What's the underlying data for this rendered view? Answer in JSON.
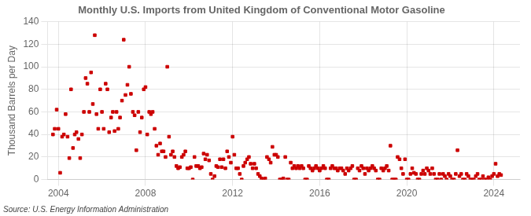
{
  "chart_data": {
    "type": "scatter",
    "title": "Monthly U.S. Imports from United Kingdom of Conventional Motor Gasoline",
    "ylabel": "Thousand Barrels per Day",
    "annotations": [
      "Source: U.S. Energy Information Administration"
    ],
    "color": "#cc0000",
    "marker": "square",
    "grid": true,
    "xlim": [
      2003.5,
      2025.2
    ],
    "ylim": [
      0,
      140
    ],
    "xticks": [
      2004,
      2008,
      2012,
      2016,
      2020,
      2024
    ],
    "yticks": [
      0,
      20,
      40,
      60,
      80,
      100,
      120,
      140
    ],
    "x": [
      2003.75,
      2003.83,
      2003.92,
      2004.0,
      2004.08,
      2004.17,
      2004.25,
      2004.33,
      2004.42,
      2004.5,
      2004.58,
      2004.67,
      2004.75,
      2004.83,
      2004.92,
      2005.0,
      2005.08,
      2005.17,
      2005.25,
      2005.33,
      2005.42,
      2005.5,
      2005.58,
      2005.67,
      2005.75,
      2005.83,
      2005.92,
      2006.0,
      2006.08,
      2006.17,
      2006.25,
      2006.33,
      2006.42,
      2006.5,
      2006.58,
      2006.67,
      2006.75,
      2006.83,
      2006.92,
      2007.0,
      2007.08,
      2007.17,
      2007.25,
      2007.33,
      2007.42,
      2007.5,
      2007.58,
      2007.67,
      2007.75,
      2007.83,
      2007.92,
      2008.0,
      2008.08,
      2008.17,
      2008.25,
      2008.33,
      2008.42,
      2008.5,
      2008.58,
      2008.67,
      2008.75,
      2008.83,
      2008.92,
      2009.0,
      2009.08,
      2009.17,
      2009.25,
      2009.33,
      2009.42,
      2009.5,
      2009.58,
      2009.67,
      2009.75,
      2009.83,
      2009.92,
      2010.0,
      2010.08,
      2010.17,
      2010.25,
      2010.33,
      2010.42,
      2010.5,
      2010.58,
      2010.67,
      2010.75,
      2010.83,
      2010.92,
      2011.0,
      2011.08,
      2011.17,
      2011.25,
      2011.33,
      2011.42,
      2011.5,
      2011.58,
      2011.67,
      2011.75,
      2011.83,
      2011.92,
      2012.0,
      2012.08,
      2012.17,
      2012.25,
      2012.33,
      2012.42,
      2012.5,
      2012.58,
      2012.67,
      2012.75,
      2012.83,
      2012.92,
      2013.0,
      2013.08,
      2013.17,
      2013.25,
      2013.33,
      2013.42,
      2013.5,
      2013.58,
      2013.67,
      2013.75,
      2013.83,
      2013.92,
      2014.0,
      2014.08,
      2014.17,
      2014.25,
      2014.33,
      2014.42,
      2014.5,
      2014.58,
      2014.67,
      2014.75,
      2014.83,
      2014.92,
      2015.0,
      2015.08,
      2015.17,
      2015.25,
      2015.33,
      2015.42,
      2015.5,
      2015.58,
      2015.67,
      2015.75,
      2015.83,
      2015.92,
      2016.0,
      2016.08,
      2016.17,
      2016.25,
      2016.33,
      2016.42,
      2016.5,
      2016.58,
      2016.67,
      2016.75,
      2016.83,
      2016.92,
      2017.0,
      2017.08,
      2017.17,
      2017.25,
      2017.33,
      2017.42,
      2017.5,
      2017.58,
      2017.67,
      2017.75,
      2017.83,
      2017.92,
      2018.0,
      2018.08,
      2018.17,
      2018.25,
      2018.33,
      2018.42,
      2018.5,
      2018.58,
      2018.67,
      2018.75,
      2018.83,
      2018.92,
      2019.0,
      2019.08,
      2019.17,
      2019.25,
      2019.33,
      2019.42,
      2019.5,
      2019.58,
      2019.67,
      2019.75,
      2019.83,
      2019.92,
      2020.0,
      2020.08,
      2020.17,
      2020.25,
      2020.33,
      2020.42,
      2020.5,
      2020.58,
      2020.67,
      2020.75,
      2020.83,
      2020.92,
      2021.0,
      2021.08,
      2021.17,
      2021.25,
      2021.33,
      2021.42,
      2021.5,
      2021.58,
      2021.67,
      2021.75,
      2021.83,
      2021.92,
      2022.0,
      2022.08,
      2022.17,
      2022.25,
      2022.33,
      2022.42,
      2022.5,
      2022.58,
      2022.67,
      2022.75,
      2022.83,
      2022.92,
      2023.0,
      2023.08,
      2023.17,
      2023.25,
      2023.33,
      2023.42,
      2023.5,
      2023.58,
      2023.67,
      2023.75,
      2023.83,
      2023.92,
      2024.0,
      2024.08,
      2024.17,
      2024.25,
      2024.33
    ],
    "values": [
      40,
      45,
      62,
      45,
      6,
      38,
      40,
      58,
      38,
      19,
      80,
      28,
      40,
      42,
      36,
      19,
      40,
      60,
      90,
      85,
      60,
      95,
      67,
      128,
      58,
      45,
      80,
      60,
      45,
      85,
      80,
      42,
      55,
      60,
      43,
      60,
      45,
      55,
      70,
      124,
      75,
      84,
      100,
      76,
      60,
      57,
      26,
      60,
      42,
      55,
      80,
      82,
      40,
      60,
      58,
      60,
      45,
      30,
      22,
      32,
      25,
      25,
      20,
      100,
      38,
      22,
      25,
      20,
      12,
      10,
      11,
      20,
      22,
      25,
      10,
      10,
      11,
      0,
      20,
      12,
      12,
      10,
      11,
      23,
      18,
      22,
      17,
      5,
      0,
      3,
      12,
      11,
      18,
      11,
      18,
      10,
      25,
      20,
      15,
      38,
      22,
      10,
      10,
      5,
      0,
      12,
      15,
      18,
      20,
      14,
      10,
      14,
      10,
      5,
      3,
      1,
      0,
      1,
      20,
      18,
      15,
      29,
      22,
      22,
      20,
      0,
      0,
      1,
      20,
      0,
      0,
      15,
      10,
      12,
      10,
      12,
      10,
      12,
      10,
      0,
      0,
      12,
      10,
      8,
      10,
      12,
      10,
      8,
      10,
      12,
      10,
      0,
      0,
      10,
      12,
      10,
      10,
      8,
      10,
      10,
      8,
      5,
      10,
      8,
      10,
      12,
      0,
      0,
      10,
      8,
      12,
      10,
      5,
      10,
      8,
      10,
      12,
      10,
      8,
      0,
      0,
      10,
      8,
      10,
      12,
      8,
      30,
      0,
      0,
      0,
      20,
      18,
      10,
      5,
      18,
      0,
      0,
      5,
      10,
      6,
      5,
      0,
      0,
      5,
      8,
      5,
      10,
      8,
      5,
      10,
      5,
      0,
      0,
      5,
      0,
      5,
      3,
      0,
      5,
      3,
      0,
      0,
      5,
      26,
      3,
      5,
      0,
      0,
      5,
      3,
      0,
      0,
      0,
      3,
      5,
      0,
      0,
      3,
      0,
      0,
      2,
      0,
      3,
      5,
      14,
      3,
      5,
      4
    ]
  }
}
